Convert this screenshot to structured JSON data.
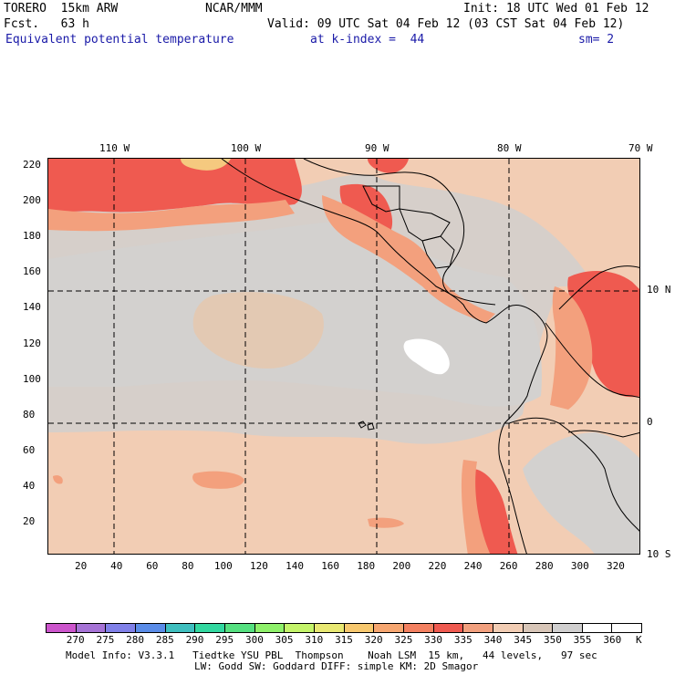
{
  "header": {
    "model": "TORERO  15km ARW",
    "org": "NCAR/MMM",
    "init": "Init: 18 UTC Wed 01 Feb 12",
    "fcst": "Fcst.   63 h",
    "valid": "Valid: 09 UTC Sat 04 Feb 12 (03 CST Sat 04 Feb 12)",
    "field": "Equivalent potential temperature",
    "level": "at k-index =  44",
    "smooth": "sm= 2"
  },
  "map": {
    "lon_labels": [
      "110 W",
      "100 W",
      "90 W",
      "80 W",
      "70 W"
    ],
    "lat_labels": [
      "10 N",
      "0",
      "10 S"
    ],
    "y_ticks": [
      "220",
      "200",
      "180",
      "160",
      "140",
      "120",
      "100",
      "80",
      "60",
      "40",
      "20"
    ],
    "x_ticks": [
      "20",
      "40",
      "60",
      "80",
      "100",
      "120",
      "140",
      "160",
      "180",
      "200",
      "220",
      "240",
      "260",
      "280",
      "300",
      "320"
    ],
    "field_colors": {
      "background_land_sea": "#f2cdb4",
      "gray_band": "#d3d1cf",
      "light_tan": "#e8c6a8",
      "orange": "#f3a07d",
      "red": "#ef5a50",
      "white": "#ffffff",
      "yellow": "#f5c97f"
    }
  },
  "colorbar": {
    "values": [
      "270",
      "275",
      "280",
      "285",
      "290",
      "295",
      "300",
      "305",
      "310",
      "315",
      "320",
      "325",
      "330",
      "335",
      "340",
      "345",
      "350",
      "355",
      "360"
    ],
    "unit": "K",
    "colors": [
      "#cc55cc",
      "#a673d6",
      "#8080e8",
      "#5a8ce8",
      "#3fbfbf",
      "#32d8a0",
      "#55e080",
      "#8ef06a",
      "#c4f46a",
      "#e8e872",
      "#f7c86e",
      "#f6a670",
      "#f38060",
      "#ef5a50",
      "#f2a07e",
      "#f2cdb4",
      "#d8c6b8",
      "#d0cfcf",
      "#ffffff"
    ]
  },
  "footer": {
    "line1": "Model Info: V3.3.1   Tiedtke YSU PBL  Thompson    Noah LSM  15 km,   44 levels,   97 sec",
    "line2": "LW: Godd SW: Goddard DIFF: simple KM: 2D Smagor"
  }
}
